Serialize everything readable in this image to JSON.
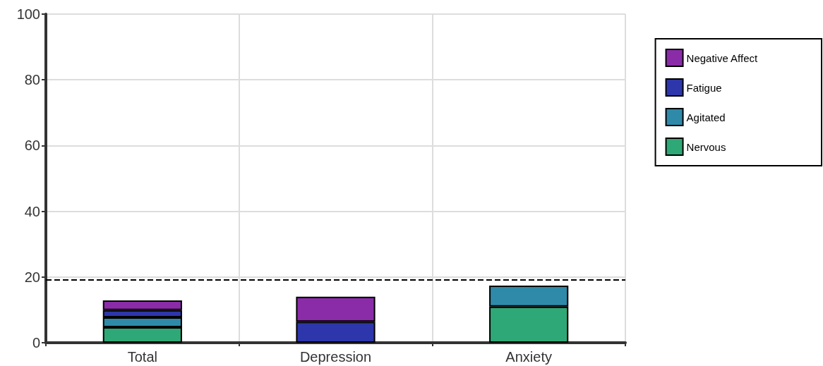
{
  "chart_data": {
    "type": "bar",
    "stacked": true,
    "categories": [
      "Total",
      "Depression",
      "Anxiety"
    ],
    "series": [
      {
        "name": "Nervous",
        "color": "#2ea876",
        "values": [
          4.7,
          null,
          11.0
        ]
      },
      {
        "name": "Agitated",
        "color": "#2e8aa8",
        "values": [
          3.0,
          null,
          6.4
        ]
      },
      {
        "name": "Fatigue",
        "color": "#2e36ab",
        "values": [
          2.2,
          6.4,
          null
        ]
      },
      {
        "name": "Negative Affect",
        "color": "#8a2ca8",
        "values": [
          3.0,
          7.6,
          null
        ]
      }
    ],
    "ylim": [
      0,
      100
    ],
    "yticks": [
      0,
      20,
      40,
      60,
      80,
      100
    ],
    "grid": true,
    "legend": "top right",
    "ref_lines": [
      {
        "axis": "y",
        "value": 19.1,
        "line_style": "dashed",
        "color": "#000000"
      }
    ]
  }
}
